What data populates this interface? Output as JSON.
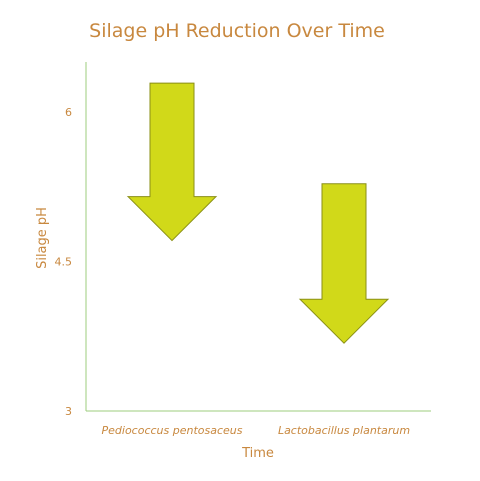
{
  "chart_data": {
    "type": "arrow",
    "title": "Silage pH Reduction Over Time",
    "xlabel": "Time",
    "ylabel": "Silage pH",
    "ylim": [
      3,
      6.5
    ],
    "yticks": [
      {
        "value": 6,
        "label": "6"
      },
      {
        "value": 4.5,
        "label": "4.5"
      },
      {
        "value": 3,
        "label": "3"
      }
    ],
    "categories": [
      "Pediococcus pentosaceus",
      "Lactobacillus plantarum"
    ],
    "series": [
      {
        "category": "Pediococcus pentosaceus",
        "start": 6.29,
        "end": 4.71
      },
      {
        "category": "Lactobacillus plantarum",
        "start": 5.28,
        "end": 3.68
      }
    ],
    "grid": false,
    "legend": "none",
    "colors": {
      "arrow_fill": "#d1d919",
      "arrow_stroke": "#8a8f16",
      "axis": "#9ccc7e",
      "text": "#c8883f"
    }
  }
}
